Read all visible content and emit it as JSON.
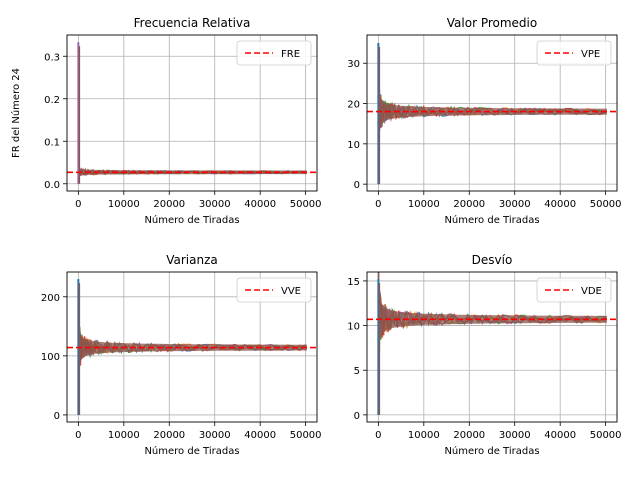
{
  "chart_data": [
    {
      "type": "line",
      "title": "Frecuencia Relativa",
      "xlabel": "Número de Tiradas",
      "ylabel": "FR del Número 24",
      "xlim": [
        -2500,
        52500
      ],
      "ylim": [
        -0.017,
        0.35
      ],
      "xticks": [
        0,
        10000,
        20000,
        30000,
        40000,
        50000
      ],
      "yticks": [
        0.0,
        0.1,
        0.2,
        0.3
      ],
      "ytick_labels": [
        "0.0",
        "0.1",
        "0.2",
        "0.3"
      ],
      "grid": true,
      "expected": 0.027,
      "peak": 0.333,
      "legend": {
        "label": "FRE",
        "position": "top-right",
        "color": "#ff0000"
      }
    },
    {
      "type": "line",
      "title": "Valor Promedio",
      "xlabel": "Número de Tiradas",
      "ylabel": "",
      "xlim": [
        -2500,
        52500
      ],
      "ylim": [
        -1.7,
        37
      ],
      "xticks": [
        0,
        10000,
        20000,
        30000,
        40000,
        50000
      ],
      "yticks": [
        0,
        10,
        20,
        30
      ],
      "ytick_labels": [
        "0",
        "10",
        "20",
        "30"
      ],
      "grid": true,
      "expected": 18,
      "peak": 35,
      "legend": {
        "label": "VPE",
        "position": "top-right",
        "color": "#ff0000"
      }
    },
    {
      "type": "line",
      "title": "Varianza",
      "xlabel": "Número de Tiradas",
      "ylabel": "",
      "xlim": [
        -2500,
        52500
      ],
      "ylim": [
        -12,
        242
      ],
      "xticks": [
        0,
        10000,
        20000,
        30000,
        40000,
        50000
      ],
      "yticks": [
        0,
        100,
        200
      ],
      "ytick_labels": [
        "0",
        "100",
        "200"
      ],
      "grid": true,
      "expected": 114,
      "peak": 230,
      "legend": {
        "label": "VVE",
        "position": "top-right",
        "color": "#ff0000"
      }
    },
    {
      "type": "line",
      "title": "Desvío",
      "xlabel": "Número de Tiradas",
      "ylabel": "",
      "xlim": [
        -2500,
        52500
      ],
      "ylim": [
        -0.8,
        16
      ],
      "xticks": [
        0,
        10000,
        20000,
        30000,
        40000,
        50000
      ],
      "yticks": [
        0,
        5,
        10,
        15
      ],
      "ytick_labels": [
        "0",
        "5",
        "10",
        "15"
      ],
      "grid": true,
      "expected": 10.7,
      "peak": 15.2,
      "legend": {
        "label": "VDE",
        "position": "top-right",
        "color": "#ff0000"
      }
    }
  ],
  "series_colors": [
    "#1f77b4",
    "#ff7f0e",
    "#2ca02c",
    "#d62728",
    "#9467bd",
    "#8c564b"
  ]
}
